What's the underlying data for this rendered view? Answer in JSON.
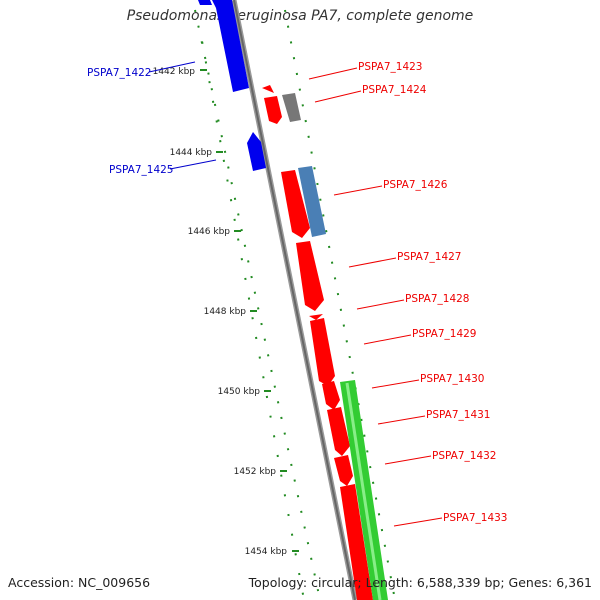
{
  "title": "Pseudomonas aeruginosa PA7, complete genome",
  "footer": {
    "accession": "Accession: NC_009656",
    "topology": "Topology: circular; Length: 6,588,339 bp; Genes: 6,361"
  },
  "colors": {
    "forward_gene": "#ff0000",
    "reverse_gene": "#0000ee",
    "gray_gene": "#777777",
    "steel_gene": "#4a7fb5",
    "green_gene": "#33cc33",
    "tick": "#228b22",
    "backbone": "#888888",
    "label_forward": "#ee0000",
    "label_reverse": "#0000cc"
  },
  "ticks": [
    "1442 kbp",
    "1444 kbp",
    "1446 kbp",
    "1448 kbp",
    "1450 kbp",
    "1452 kbp",
    "1454 kbp"
  ],
  "genes": [
    {
      "label": "PSPA7_1422",
      "strand": "reverse"
    },
    {
      "label": "PSPA7_1423",
      "strand": "forward"
    },
    {
      "label": "PSPA7_1424",
      "strand": "forward"
    },
    {
      "label": "PSPA7_1425",
      "strand": "reverse"
    },
    {
      "label": "PSPA7_1426",
      "strand": "forward"
    },
    {
      "label": "PSPA7_1427",
      "strand": "forward"
    },
    {
      "label": "PSPA7_1428",
      "strand": "forward"
    },
    {
      "label": "PSPA7_1429",
      "strand": "forward"
    },
    {
      "label": "PSPA7_1430",
      "strand": "forward"
    },
    {
      "label": "PSPA7_1431",
      "strand": "forward"
    },
    {
      "label": "PSPA7_1432",
      "strand": "forward"
    },
    {
      "label": "PSPA7_1433",
      "strand": "forward"
    }
  ]
}
